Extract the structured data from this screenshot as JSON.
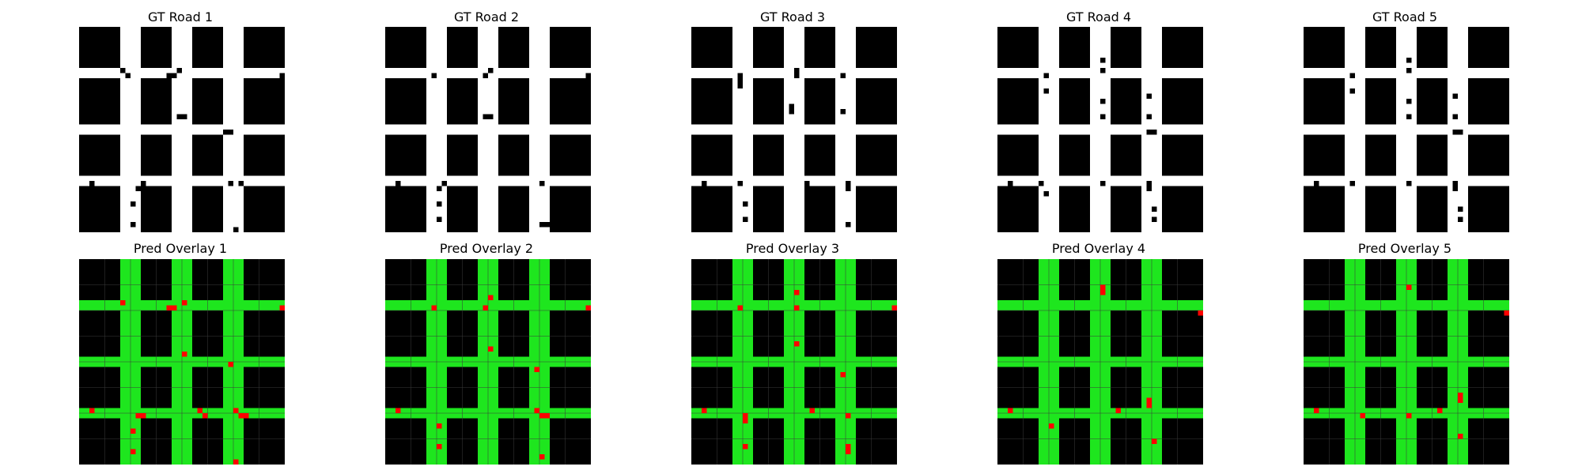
{
  "gt_titles": [
    "GT Road 1",
    "GT Road 2",
    "GT Road 3",
    "GT Road 4",
    "GT Road 5"
  ],
  "pred_titles": [
    "Pred Overlay 1",
    "Pred Overlay 2",
    "Pred Overlay 3",
    "Pred Overlay 4",
    "Pred Overlay 5"
  ],
  "colors": {
    "road_gt": "#ffffff",
    "background": "#000000",
    "road_pred": "#1ee61e",
    "error": "#ff0000",
    "grid": "#3a3a3a"
  },
  "grid_cells": 40,
  "road_bands": {
    "vertical": [
      [
        8,
        12
      ],
      [
        18,
        22
      ],
      [
        28,
        32
      ]
    ],
    "horizontal": [
      [
        8,
        10
      ],
      [
        19,
        21
      ],
      [
        29,
        31
      ]
    ]
  },
  "gt_notches": [
    [
      [
        8,
        8
      ],
      [
        9,
        9
      ],
      [
        17,
        9
      ],
      [
        18,
        9
      ],
      [
        19,
        8
      ],
      [
        39,
        9
      ],
      [
        19,
        17
      ],
      [
        20,
        17
      ],
      [
        29,
        20
      ],
      [
        28,
        20
      ],
      [
        2,
        30
      ],
      [
        12,
        30
      ],
      [
        29,
        30
      ],
      [
        31,
        30
      ],
      [
        11,
        31
      ],
      [
        12,
        31
      ],
      [
        24,
        31
      ],
      [
        10,
        34
      ],
      [
        10,
        38
      ],
      [
        30,
        39
      ]
    ],
    [
      [
        9,
        9
      ],
      [
        19,
        9
      ],
      [
        20,
        8
      ],
      [
        39,
        9
      ],
      [
        20,
        17
      ],
      [
        19,
        17
      ],
      [
        2,
        30
      ],
      [
        10,
        31
      ],
      [
        11,
        30
      ],
      [
        30,
        30
      ],
      [
        10,
        34
      ],
      [
        10,
        37
      ],
      [
        31,
        38
      ],
      [
        30,
        38
      ]
    ],
    [
      [
        9,
        9
      ],
      [
        20,
        8
      ],
      [
        20,
        9
      ],
      [
        9,
        10
      ],
      [
        9,
        11
      ],
      [
        19,
        15
      ],
      [
        19,
        16
      ],
      [
        29,
        9
      ],
      [
        29,
        16
      ],
      [
        2,
        30
      ],
      [
        9,
        30
      ],
      [
        22,
        30
      ],
      [
        30,
        30
      ],
      [
        30,
        31
      ],
      [
        10,
        34
      ],
      [
        10,
        37
      ],
      [
        30,
        38
      ]
    ],
    [
      [
        9,
        9
      ],
      [
        20,
        6
      ],
      [
        20,
        8
      ],
      [
        39,
        10
      ],
      [
        9,
        12
      ],
      [
        20,
        14
      ],
      [
        20,
        17
      ],
      [
        29,
        13
      ],
      [
        29,
        17
      ],
      [
        30,
        20
      ],
      [
        29,
        20
      ],
      [
        2,
        30
      ],
      [
        8,
        30
      ],
      [
        9,
        32
      ],
      [
        20,
        30
      ],
      [
        29,
        30
      ],
      [
        29,
        31
      ],
      [
        30,
        35
      ],
      [
        30,
        37
      ]
    ],
    [
      [
        9,
        9
      ],
      [
        20,
        6
      ],
      [
        20,
        8
      ],
      [
        39,
        10
      ],
      [
        9,
        12
      ],
      [
        20,
        14
      ],
      [
        20,
        17
      ],
      [
        29,
        13
      ],
      [
        29,
        17
      ],
      [
        30,
        20
      ],
      [
        29,
        20
      ],
      [
        2,
        30
      ],
      [
        9,
        30
      ],
      [
        20,
        30
      ],
      [
        29,
        30
      ],
      [
        29,
        31
      ],
      [
        30,
        35
      ],
      [
        30,
        37
      ]
    ]
  ],
  "pred_errors": [
    [
      [
        8,
        8
      ],
      [
        17,
        9
      ],
      [
        18,
        9
      ],
      [
        20,
        8
      ],
      [
        39,
        9
      ],
      [
        20,
        18
      ],
      [
        29,
        20
      ],
      [
        2,
        29
      ],
      [
        11,
        30
      ],
      [
        12,
        30
      ],
      [
        23,
        29
      ],
      [
        24,
        30
      ],
      [
        30,
        29
      ],
      [
        31,
        30
      ],
      [
        32,
        30
      ],
      [
        10,
        33
      ],
      [
        10,
        37
      ],
      [
        30,
        39
      ]
    ],
    [
      [
        9,
        9
      ],
      [
        19,
        9
      ],
      [
        20,
        7
      ],
      [
        39,
        9
      ],
      [
        20,
        17
      ],
      [
        29,
        21
      ],
      [
        2,
        29
      ],
      [
        29,
        29
      ],
      [
        30,
        30
      ],
      [
        31,
        30
      ],
      [
        10,
        32
      ],
      [
        10,
        36
      ],
      [
        30,
        38
      ]
    ],
    [
      [
        9,
        9
      ],
      [
        20,
        6
      ],
      [
        20,
        9
      ],
      [
        39,
        9
      ],
      [
        20,
        16
      ],
      [
        29,
        22
      ],
      [
        2,
        29
      ],
      [
        23,
        29
      ],
      [
        30,
        30
      ],
      [
        10,
        30
      ],
      [
        10,
        31
      ],
      [
        10,
        36
      ],
      [
        30,
        36
      ],
      [
        30,
        37
      ]
    ],
    [
      [
        20,
        5
      ],
      [
        20,
        6
      ],
      [
        39,
        10
      ],
      [
        2,
        29
      ],
      [
        10,
        32
      ],
      [
        23,
        29
      ],
      [
        29,
        27
      ],
      [
        29,
        28
      ],
      [
        30,
        35
      ]
    ],
    [
      [
        20,
        5
      ],
      [
        39,
        10
      ],
      [
        2,
        29
      ],
      [
        11,
        30
      ],
      [
        20,
        30
      ],
      [
        26,
        29
      ],
      [
        30,
        26
      ],
      [
        30,
        27
      ],
      [
        30,
        34
      ]
    ]
  ]
}
